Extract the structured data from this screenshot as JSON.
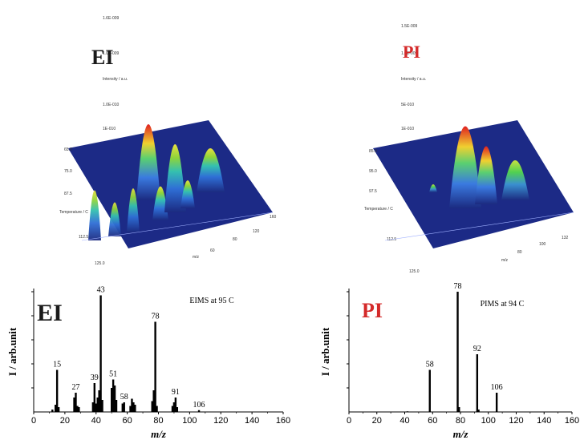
{
  "top_panels": [
    {
      "mode_label": "EI",
      "mode_color": "#1a1a1a"
    },
    {
      "mode_label": "PI",
      "mode_color": "#d42a2a"
    }
  ],
  "chart_data": [
    {
      "type": "bar",
      "title": "EIMS at 95 C",
      "mode_label": "EI",
      "mode_color": "#1a1a1a",
      "xlabel": "m/z",
      "ylabel": "I / arb.unit",
      "xlim": [
        0,
        160
      ],
      "ylim": [
        0,
        100
      ],
      "xticks": [
        "0",
        "20",
        "40",
        "60",
        "80",
        "100",
        "120",
        "140",
        "160"
      ],
      "x": [
        12,
        14,
        15,
        16,
        26,
        27,
        28,
        29,
        38,
        39,
        40,
        41,
        42,
        43,
        44,
        50,
        51,
        52,
        53,
        57,
        58,
        62,
        63,
        64,
        65,
        76,
        77,
        78,
        79,
        89,
        90,
        91,
        92,
        106
      ],
      "values": [
        2,
        6,
        35,
        4,
        12,
        16,
        5,
        4,
        8,
        24,
        7,
        12,
        18,
        97,
        10,
        20,
        27,
        22,
        10,
        7,
        8,
        5,
        11,
        8,
        6,
        9,
        18,
        75,
        5,
        5,
        8,
        12,
        4,
        1.5
      ],
      "peak_labels": [
        {
          "x": 15,
          "y": 35,
          "text": "15"
        },
        {
          "x": 27,
          "y": 16,
          "text": "27"
        },
        {
          "x": 39,
          "y": 24,
          "text": "39"
        },
        {
          "x": 43,
          "y": 97,
          "text": "43"
        },
        {
          "x": 51,
          "y": 27,
          "text": "51"
        },
        {
          "x": 58,
          "y": 8,
          "text": "58"
        },
        {
          "x": 78,
          "y": 75,
          "text": "78"
        },
        {
          "x": 91,
          "y": 12,
          "text": "91"
        },
        {
          "x": 106,
          "y": 1.5,
          "text": "106"
        }
      ]
    },
    {
      "type": "bar",
      "title": "PIMS at 94 C",
      "mode_label": "PI",
      "mode_color": "#d42a2a",
      "xlabel": "m/z",
      "ylabel": "I / arb.unit",
      "xlim": [
        0,
        160
      ],
      "ylim": [
        0,
        100
      ],
      "xticks": [
        "0",
        "20",
        "40",
        "60",
        "80",
        "100",
        "120",
        "140",
        "160"
      ],
      "x": [
        42,
        58,
        78,
        79,
        92,
        93,
        106
      ],
      "values": [
        0.5,
        35,
        100,
        4,
        48,
        2,
        16
      ],
      "peak_labels": [
        {
          "x": 58,
          "y": 35,
          "text": "58"
        },
        {
          "x": 78,
          "y": 100,
          "text": "78"
        },
        {
          "x": 92,
          "y": 48,
          "text": "92"
        },
        {
          "x": 106,
          "y": 16,
          "text": "106"
        }
      ]
    }
  ]
}
